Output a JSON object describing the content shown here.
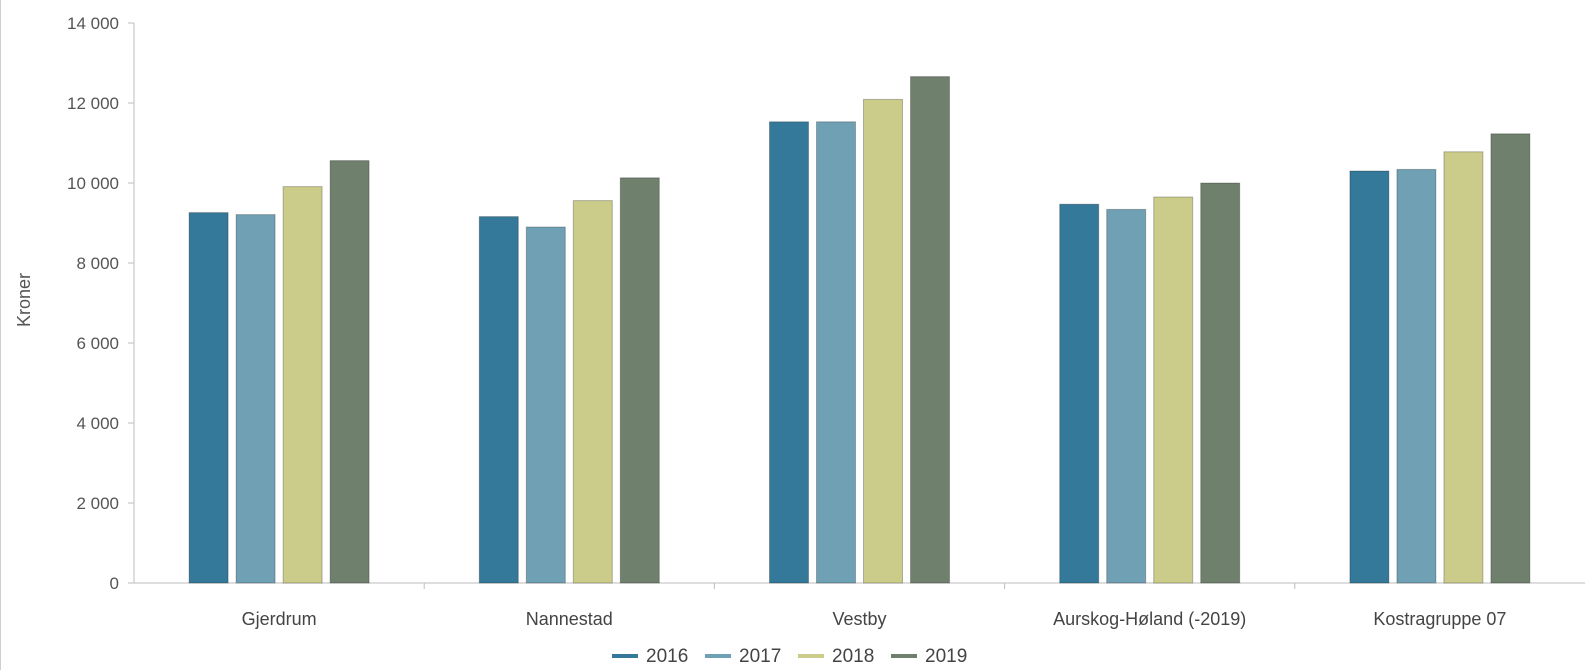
{
  "chart_data": {
    "type": "bar",
    "categories": [
      "Gjerdrum",
      "Nannestad",
      "Vestby",
      "Aurskog-Høland (-2019)",
      "Kostragruppe 07"
    ],
    "series": [
      {
        "name": "2016",
        "color": "#35799a",
        "values": [
          9260,
          9160,
          11530,
          9470,
          10300
        ]
      },
      {
        "name": "2017",
        "color": "#6fa0b4",
        "values": [
          9210,
          8900,
          11530,
          9340,
          10340
        ]
      },
      {
        "name": "2018",
        "color": "#cbcb8a",
        "values": [
          9910,
          9560,
          12090,
          9650,
          10780
        ]
      },
      {
        "name": "2019",
        "color": "#6f806d",
        "values": [
          10560,
          10130,
          12660,
          10000,
          11230
        ]
      }
    ],
    "ylabel": "Kroner",
    "xlabel": "",
    "ylim": [
      0,
      14000
    ],
    "yticks": [
      0,
      2000,
      4000,
      6000,
      8000,
      10000,
      12000,
      14000
    ],
    "ytick_labels": [
      "0",
      "2 000",
      "4 000",
      "6 000",
      "8 000",
      "10 000",
      "12 000",
      "14 000"
    ],
    "grid": false,
    "legend_position": "bottom-center"
  }
}
